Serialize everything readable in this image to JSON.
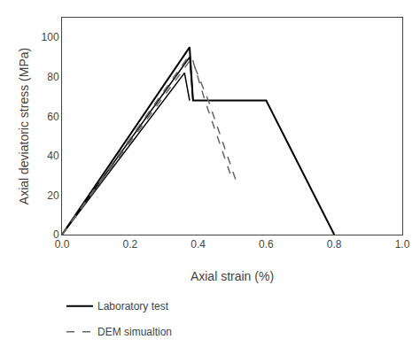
{
  "chart_data": {
    "type": "line",
    "xlabel": "Axial strain (%)",
    "ylabel": "Axial deviatoric stress (MPa)",
    "xlim": [
      0.0,
      1.0
    ],
    "ylim": [
      0,
      110
    ],
    "xticks": [
      {
        "value": 0.0,
        "label": "0.0"
      },
      0.2,
      0.4,
      0.6,
      0.8,
      {
        "value": 1.0,
        "label": "1.0"
      }
    ],
    "yticks": [
      0,
      20,
      40,
      60,
      80,
      100
    ],
    "grid": false,
    "legend": "below",
    "series": [
      {
        "name": "Laboratory test",
        "color": "#000000",
        "line_style": "solid",
        "x": [
          0.0,
          0.375,
          0.375,
          0.385,
          0.6,
          0.8
        ],
        "values": [
          0,
          95,
          95,
          68,
          68,
          0
        ]
      },
      {
        "name": "Laboratory test",
        "color": "#000000",
        "line_style": "solid",
        "x": [
          0.0,
          0.365,
          0.375,
          0.385
        ],
        "values": [
          0,
          88,
          90,
          68
        ]
      },
      {
        "name": "Laboratory test",
        "color": "#000000",
        "line_style": "solid",
        "x": [
          0.0,
          0.36,
          0.375
        ],
        "values": [
          0,
          82,
          68
        ]
      },
      {
        "name": "DEM simualtion",
        "color": "#666666",
        "line_style": "dashed",
        "x": [
          0.0,
          0.37,
          0.385,
          0.42,
          0.5
        ],
        "values": [
          0,
          90,
          88,
          68,
          28
        ]
      },
      {
        "name": "DEM simualtion",
        "color": "#666666",
        "line_style": "dashed",
        "x": [
          0.0,
          0.375,
          0.39,
          0.43,
          0.51
        ],
        "values": [
          0,
          88,
          85,
          68,
          28
        ]
      }
    ]
  }
}
